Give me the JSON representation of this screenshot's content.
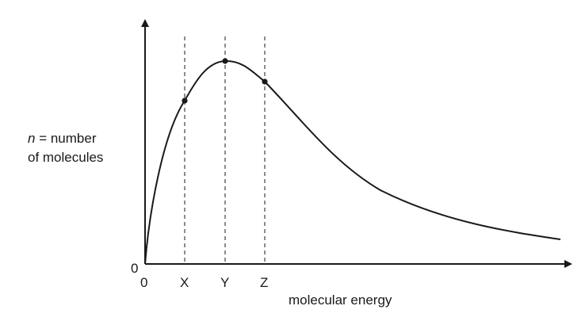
{
  "diagram": {
    "type": "maxwell-boltzmann-distribution",
    "y_axis": {
      "label_italic": "n",
      "label_rest": " = number",
      "label_line2": "of molecules",
      "origin_label": "0"
    },
    "x_axis": {
      "origin_label": "0",
      "label": "molecular energy"
    },
    "markers": [
      {
        "label": "X"
      },
      {
        "label": "Y"
      },
      {
        "label": "Z"
      }
    ],
    "colors": {
      "ink": "#1a1a1a",
      "background": "#ffffff"
    }
  }
}
